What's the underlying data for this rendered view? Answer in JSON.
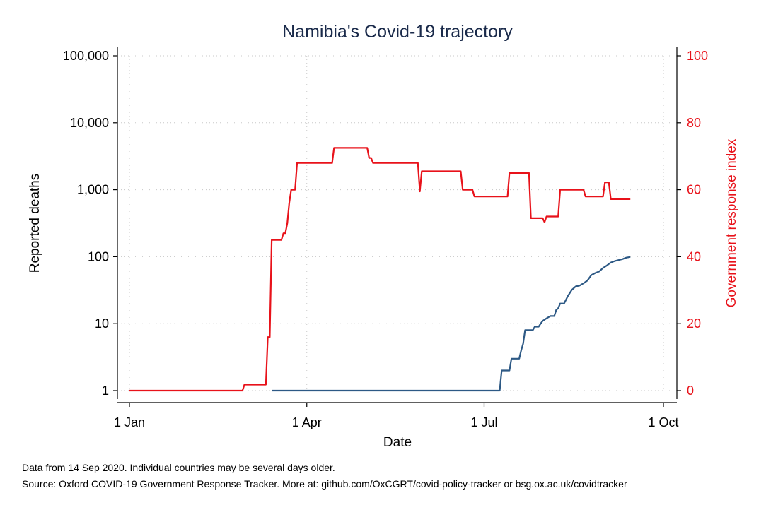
{
  "chart_data": {
    "type": "line",
    "title": "Namibia's Covid-19 trajectory",
    "xlabel": "Date",
    "ylabel_left": "Reported deaths",
    "ylabel_right": "Government response index",
    "x_ticks": [
      "1 Jan",
      "1 Apr",
      "1 Jul",
      "1 Oct"
    ],
    "x_range": [
      "2020-01-01",
      "2020-10-01"
    ],
    "y_left": {
      "scale": "log",
      "range": [
        1,
        100000
      ],
      "ticks": [
        "1",
        "10",
        "100",
        "1,000",
        "10,000",
        "100,000"
      ]
    },
    "y_right": {
      "scale": "linear",
      "range": [
        0,
        100
      ],
      "ticks": [
        "0",
        "20",
        "40",
        "60",
        "80",
        "100"
      ]
    },
    "grid": true,
    "series": [
      {
        "name": "Reported deaths",
        "axis": "left",
        "color": "#2d5985",
        "points": [
          [
            "2020-03-14",
            1
          ],
          [
            "2020-07-09",
            1
          ],
          [
            "2020-07-10",
            2
          ],
          [
            "2020-07-14",
            2
          ],
          [
            "2020-07-15",
            3
          ],
          [
            "2020-07-19",
            3
          ],
          [
            "2020-07-20",
            4
          ],
          [
            "2020-07-21",
            5
          ],
          [
            "2020-07-22",
            8
          ],
          [
            "2020-07-26",
            8
          ],
          [
            "2020-07-27",
            9
          ],
          [
            "2020-07-29",
            9
          ],
          [
            "2020-07-30",
            10
          ],
          [
            "2020-07-31",
            11
          ],
          [
            "2020-08-02",
            12
          ],
          [
            "2020-08-04",
            13
          ],
          [
            "2020-08-06",
            13
          ],
          [
            "2020-08-07",
            16
          ],
          [
            "2020-08-08",
            17
          ],
          [
            "2020-08-09",
            20
          ],
          [
            "2020-08-11",
            20
          ],
          [
            "2020-08-13",
            26
          ],
          [
            "2020-08-15",
            32
          ],
          [
            "2020-08-17",
            36
          ],
          [
            "2020-08-19",
            37
          ],
          [
            "2020-08-21",
            40
          ],
          [
            "2020-08-23",
            44
          ],
          [
            "2020-08-25",
            53
          ],
          [
            "2020-08-27",
            57
          ],
          [
            "2020-08-29",
            60
          ],
          [
            "2020-08-31",
            68
          ],
          [
            "2020-09-02",
            74
          ],
          [
            "2020-09-04",
            82
          ],
          [
            "2020-09-06",
            86
          ],
          [
            "2020-09-08",
            89
          ],
          [
            "2020-09-10",
            92
          ],
          [
            "2020-09-12",
            97
          ],
          [
            "2020-09-14",
            99
          ]
        ]
      },
      {
        "name": "Government response index",
        "axis": "right",
        "color": "#e8121a",
        "points": [
          [
            "2020-01-01",
            0
          ],
          [
            "2020-02-28",
            0
          ],
          [
            "2020-02-29",
            1.8
          ],
          [
            "2020-03-11",
            1.8
          ],
          [
            "2020-03-12",
            16
          ],
          [
            "2020-03-13",
            16
          ],
          [
            "2020-03-14",
            45
          ],
          [
            "2020-03-19",
            45
          ],
          [
            "2020-03-20",
            47
          ],
          [
            "2020-03-21",
            47
          ],
          [
            "2020-03-22",
            50
          ],
          [
            "2020-03-23",
            56
          ],
          [
            "2020-03-24",
            60
          ],
          [
            "2020-03-26",
            60
          ],
          [
            "2020-03-27",
            68
          ],
          [
            "2020-04-14",
            68
          ],
          [
            "2020-04-15",
            72.5
          ],
          [
            "2020-05-02",
            72.5
          ],
          [
            "2020-05-03",
            69.5
          ],
          [
            "2020-05-04",
            69.5
          ],
          [
            "2020-05-05",
            68
          ],
          [
            "2020-05-28",
            68
          ],
          [
            "2020-05-29",
            59.5
          ],
          [
            "2020-05-30",
            65.5
          ],
          [
            "2020-06-19",
            65.5
          ],
          [
            "2020-06-20",
            60
          ],
          [
            "2020-06-25",
            60
          ],
          [
            "2020-06-26",
            58
          ],
          [
            "2020-07-13",
            58
          ],
          [
            "2020-07-14",
            65
          ],
          [
            "2020-07-24",
            65
          ],
          [
            "2020-07-25",
            51.5
          ],
          [
            "2020-07-31",
            51.5
          ],
          [
            "2020-08-01",
            50.3
          ],
          [
            "2020-08-02",
            52
          ],
          [
            "2020-08-08",
            52
          ],
          [
            "2020-08-09",
            60
          ],
          [
            "2020-08-21",
            60
          ],
          [
            "2020-08-22",
            58
          ],
          [
            "2020-08-31",
            58
          ],
          [
            "2020-09-01",
            62.2
          ],
          [
            "2020-09-03",
            62.2
          ],
          [
            "2020-09-04",
            57.2
          ],
          [
            "2020-09-14",
            57.2
          ]
        ]
      }
    ]
  },
  "notes": {
    "line1": "Data from 14 Sep 2020. Individual countries may be several days older.",
    "line2": "Source: Oxford COVID-19 Government Response Tracker. More at: github.com/OxCGRT/covid-policy-tracker or bsg.ox.ac.uk/covidtracker"
  }
}
